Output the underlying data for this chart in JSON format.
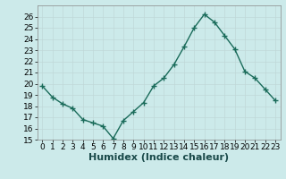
{
  "x": [
    0,
    1,
    2,
    3,
    4,
    5,
    6,
    7,
    8,
    9,
    10,
    11,
    12,
    13,
    14,
    15,
    16,
    17,
    18,
    19,
    20,
    21,
    22,
    23
  ],
  "y": [
    19.8,
    18.8,
    18.2,
    17.8,
    16.8,
    16.5,
    16.2,
    15.1,
    16.7,
    17.5,
    18.3,
    19.8,
    20.5,
    21.7,
    23.3,
    25.0,
    26.2,
    25.5,
    24.3,
    23.1,
    21.1,
    20.5,
    19.5,
    18.5
  ],
  "line_color": "#1a6b5a",
  "marker": "+",
  "marker_size": 4,
  "linewidth": 1.0,
  "xlabel": "Humidex (Indice chaleur)",
  "xlim": [
    -0.5,
    23.5
  ],
  "ylim": [
    15,
    27
  ],
  "yticks": [
    15,
    16,
    17,
    18,
    19,
    20,
    21,
    22,
    23,
    24,
    25,
    26
  ],
  "bg_color": "#cceaea",
  "grid_color": "#c0d8d8",
  "tick_fontsize": 6.5,
  "xlabel_fontsize": 8
}
